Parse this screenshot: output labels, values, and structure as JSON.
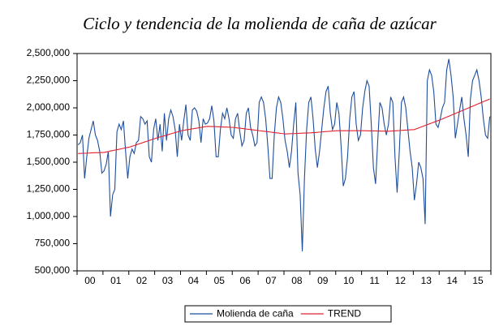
{
  "chart_data": {
    "type": "line",
    "title": "Ciclo y tendencia de la molienda de caña de azúcar",
    "categories": [
      null,
      null,
      null,
      null,
      null,
      null,
      "00",
      null,
      null,
      null,
      null,
      null,
      null,
      null,
      null,
      null,
      null,
      null,
      "01",
      null,
      null,
      null,
      null,
      null,
      null,
      null,
      null,
      null,
      null,
      null,
      "02",
      null,
      null,
      null,
      null,
      null,
      null,
      null,
      null,
      null,
      null,
      null,
      "03",
      null,
      null,
      null,
      null,
      null,
      null,
      null,
      null,
      null,
      null,
      null,
      "04",
      null,
      null,
      null,
      null,
      null,
      null,
      null,
      null,
      null,
      null,
      null,
      "05",
      null,
      null,
      null,
      null,
      null,
      null,
      null,
      null,
      null,
      null,
      null,
      "06",
      null,
      null,
      null,
      null,
      null,
      null,
      null,
      null,
      null,
      null,
      null,
      "07",
      null,
      null,
      null,
      null,
      null,
      null,
      null,
      null,
      null,
      null,
      null,
      "08",
      null,
      null,
      null,
      null,
      null,
      null,
      null,
      null,
      null,
      null,
      null,
      "09",
      null,
      null,
      null,
      null,
      null,
      null,
      null,
      null,
      null,
      null,
      null,
      "10",
      null,
      null,
      null,
      null,
      null,
      null,
      null,
      null,
      null,
      null,
      null,
      "11",
      null,
      null,
      null,
      null,
      null,
      null,
      null,
      null,
      null,
      null,
      null,
      "12",
      null,
      null,
      null,
      null,
      null,
      null,
      null,
      null,
      null,
      null,
      null,
      "13",
      null,
      null,
      null,
      null,
      null,
      null,
      null,
      null,
      null,
      null,
      null,
      "14",
      null,
      null,
      null,
      null,
      null,
      null,
      null,
      null,
      null,
      null,
      null,
      "15",
      null,
      null,
      null,
      null,
      null
    ],
    "series": [
      {
        "name": "Molienda de caña",
        "color": "#1f4e9c",
        "values": [
          1660000,
          1680000,
          1750000,
          1350000,
          1550000,
          1720000,
          1800000,
          1880000,
          1750000,
          1700000,
          1600000,
          1400000,
          1420000,
          1480000,
          1600000,
          1000000,
          1200000,
          1250000,
          1780000,
          1850000,
          1800000,
          1880000,
          1600000,
          1350000,
          1550000,
          1620000,
          1580000,
          1680000,
          1700000,
          1920000,
          1900000,
          1850000,
          1880000,
          1550000,
          1500000,
          1800000,
          1900000,
          1700000,
          1850000,
          1600000,
          1950000,
          1700000,
          1900000,
          1980000,
          1920000,
          1800000,
          1550000,
          1850000,
          1700000,
          1880000,
          2030000,
          1750000,
          1700000,
          1980000,
          2000000,
          1970000,
          1880000,
          1680000,
          1900000,
          1850000,
          1860000,
          1900000,
          2020000,
          1880000,
          1550000,
          1550000,
          1800000,
          1950000,
          1900000,
          2000000,
          1900000,
          1750000,
          1720000,
          1900000,
          1950000,
          1780000,
          1650000,
          1700000,
          1950000,
          2000000,
          1820000,
          1750000,
          1650000,
          1680000,
          2050000,
          2100000,
          2050000,
          1900000,
          1650000,
          1350000,
          1350000,
          1750000,
          2000000,
          2100000,
          2050000,
          1900000,
          1700000,
          1600000,
          1450000,
          1600000,
          1850000,
          2050000,
          1400000,
          1200000,
          680000,
          1350000,
          1800000,
          2050000,
          2100000,
          1900000,
          1620000,
          1450000,
          1600000,
          1800000,
          2000000,
          2150000,
          2200000,
          1950000,
          1800000,
          1850000,
          2050000,
          1950000,
          1650000,
          1280000,
          1350000,
          1550000,
          1900000,
          2100000,
          2150000,
          1850000,
          1700000,
          1750000,
          2000000,
          2150000,
          2250000,
          2200000,
          1850000,
          1450000,
          1300000,
          1700000,
          2050000,
          2000000,
          1850000,
          1750000,
          1850000,
          2100000,
          2050000,
          1550000,
          1220000,
          1600000,
          2050000,
          2100000,
          2000000,
          1800000,
          1600000,
          1450000,
          1150000,
          1300000,
          1500000,
          1450000,
          1350000,
          930000,
          2250000,
          2350000,
          2300000,
          2150000,
          1850000,
          1820000,
          1900000,
          2000000,
          2050000,
          2350000,
          2450000,
          2300000,
          2100000,
          1720000,
          1850000,
          1980000,
          2100000,
          1900000,
          1750000,
          1550000,
          2080000,
          2250000,
          2300000,
          2350000,
          2250000,
          2100000,
          1900000,
          1750000,
          1720000,
          1920000
        ]
      },
      {
        "name": "TREND",
        "color": "#e0202e",
        "values": [
          1580000,
          1581000,
          1582000,
          1582000,
          1583000,
          1584000,
          1585000,
          1586000,
          1587000,
          1587000,
          1588000,
          1589000,
          1590000,
          1594000,
          1598000,
          1603000,
          1607000,
          1611000,
          1615000,
          1619000,
          1623000,
          1628000,
          1632000,
          1636000,
          1640000,
          1647000,
          1653000,
          1660000,
          1667000,
          1673000,
          1680000,
          1687000,
          1693000,
          1700000,
          1707000,
          1713000,
          1720000,
          1726000,
          1732000,
          1738000,
          1743000,
          1749000,
          1755000,
          1761000,
          1767000,
          1773000,
          1778000,
          1784000,
          1790000,
          1793000,
          1797000,
          1800000,
          1803000,
          1807000,
          1810000,
          1813000,
          1817000,
          1820000,
          1823000,
          1827000,
          1830000,
          1829000,
          1828000,
          1828000,
          1827000,
          1826000,
          1825000,
          1824000,
          1823000,
          1823000,
          1822000,
          1821000,
          1820000,
          1818000,
          1815000,
          1813000,
          1810000,
          1808000,
          1805000,
          1803000,
          1800000,
          1798000,
          1795000,
          1793000,
          1790000,
          1788000,
          1785000,
          1783000,
          1780000,
          1778000,
          1775000,
          1773000,
          1770000,
          1768000,
          1765000,
          1763000,
          1760000,
          1761000,
          1762000,
          1763000,
          1763000,
          1764000,
          1765000,
          1766000,
          1767000,
          1768000,
          1768000,
          1769000,
          1770000,
          1772000,
          1773000,
          1775000,
          1777000,
          1778000,
          1780000,
          1782000,
          1783000,
          1785000,
          1787000,
          1788000,
          1790000,
          1790000,
          1790000,
          1790000,
          1790000,
          1790000,
          1790000,
          1790000,
          1790000,
          1790000,
          1790000,
          1790000,
          1790000,
          1790000,
          1789000,
          1789000,
          1788000,
          1788000,
          1788000,
          1787000,
          1787000,
          1786000,
          1786000,
          1785000,
          1785000,
          1786000,
          1788000,
          1789000,
          1790000,
          1791000,
          1793000,
          1794000,
          1795000,
          1796000,
          1798000,
          1799000,
          1800000,
          1808000,
          1815000,
          1823000,
          1830000,
          1838000,
          1845000,
          1853000,
          1860000,
          1868000,
          1875000,
          1883000,
          1890000,
          1898000,
          1907000,
          1915000,
          1923000,
          1932000,
          1940000,
          1948000,
          1957000,
          1965000,
          1973000,
          1982000,
          1990000,
          1998000,
          2007000,
          2015000,
          2023000,
          2032000,
          2040000,
          2048000,
          2057000,
          2065000,
          2073000,
          2082000
        ]
      }
    ],
    "ylim": [
      500000,
      2500000
    ],
    "yticks": [
      {
        "value": 500000,
        "label": "500,000"
      },
      {
        "value": 750000,
        "label": "750,000"
      },
      {
        "value": 1000000,
        "label": "1,000,000"
      },
      {
        "value": 1250000,
        "label": "1,250,000"
      },
      {
        "value": 1500000,
        "label": "1,500,000"
      },
      {
        "value": 1750000,
        "label": "1,750,000"
      },
      {
        "value": 2000000,
        "label": "2,000,000"
      },
      {
        "value": 2250000,
        "label": "2,250,000"
      },
      {
        "value": 2500000,
        "label": "2,500,000"
      }
    ],
    "grid": false,
    "legend": "bottom"
  }
}
